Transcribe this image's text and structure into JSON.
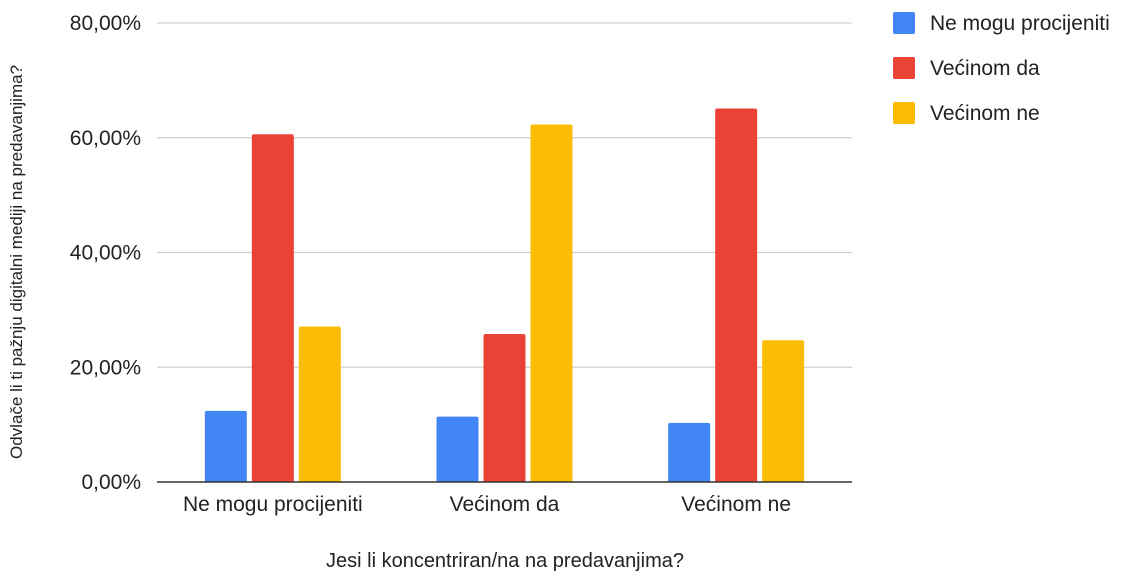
{
  "chart_data": {
    "type": "bar",
    "title": "",
    "xlabel": "Jesi li koncentriran/na na predavanjima?",
    "ylabel": "Odvlače li ti pažnju digitalni mediji na predavanjima?",
    "categories": [
      "Ne mogu procijeniti",
      "Većinom da",
      "Većinom ne"
    ],
    "series": [
      {
        "name": "Ne mogu procijeniti",
        "color": "#4285F4",
        "values": [
          12.4,
          11.4,
          10.3
        ]
      },
      {
        "name": "Većinom da",
        "color": "#EA4335",
        "values": [
          60.6,
          25.8,
          65.1
        ]
      },
      {
        "name": "Većinom ne",
        "color": "#FBBC04",
        "values": [
          27.1,
          62.3,
          24.7
        ]
      }
    ],
    "ylim": [
      0,
      80
    ],
    "yticks": [
      "0,00%",
      "20,00%",
      "40,00%",
      "60,00%",
      "80,00%"
    ],
    "grid": true,
    "legend_position": "right"
  }
}
